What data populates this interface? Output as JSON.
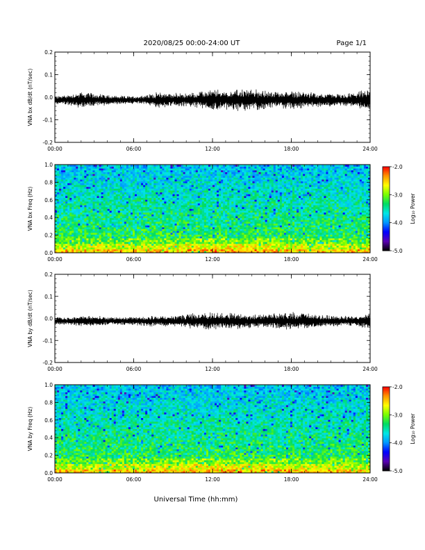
{
  "header": {
    "date_range": "2020/08/25  00:00-24:00 UT",
    "page": "Page 1/1"
  },
  "xlabel": "Universal Time (hh:mm)",
  "colors": {
    "trace": "#000000",
    "colorbar": [
      "#000000",
      "#5a00b4",
      "#0000ff",
      "#0096ff",
      "#00e6e6",
      "#00dc64",
      "#78ff00",
      "#ffff00",
      "#ff9600",
      "#ff0000"
    ]
  },
  "chart_data": [
    {
      "type": "line",
      "ylabel": "VNA bx dB/dt (nT/sec)",
      "ylim": [
        -0.2,
        0.2
      ],
      "yticks": [
        -0.2,
        -0.1,
        0.0,
        0.1,
        0.2
      ],
      "ytick_labels": [
        "-0.2",
        "-0.1",
        "0.0",
        "0.1",
        "0.2"
      ],
      "xlim": [
        0,
        24
      ],
      "xticks": [
        0,
        6,
        12,
        18,
        24
      ],
      "xtick_labels": [
        "00:00",
        "06:00",
        "12:00",
        "18:00",
        "24:00"
      ],
      "envelope": {
        "hours": [
          0,
          1,
          2,
          3,
          4,
          5,
          6,
          7,
          8,
          9,
          10,
          11,
          12,
          13,
          14,
          15,
          16,
          17,
          18,
          19,
          20,
          21,
          22,
          23,
          24
        ],
        "amplitude": [
          0.015,
          0.02,
          0.03,
          0.025,
          0.02,
          0.015,
          0.015,
          0.02,
          0.03,
          0.025,
          0.025,
          0.03,
          0.04,
          0.035,
          0.04,
          0.04,
          0.035,
          0.03,
          0.035,
          0.03,
          0.025,
          0.025,
          0.02,
          0.03,
          0.04
        ]
      }
    },
    {
      "type": "heatmap",
      "ylabel": "VNA bx Freq (Hz)",
      "ylim": [
        0.0,
        1.0
      ],
      "yticks": [
        0.0,
        0.2,
        0.4,
        0.6,
        0.8,
        1.0
      ],
      "ytick_labels": [
        "0.0",
        "0.2",
        "0.4",
        "0.6",
        "0.8",
        "1.0"
      ],
      "xlim": [
        0,
        24
      ],
      "xticks": [
        0,
        6,
        12,
        18,
        24
      ],
      "xtick_labels": [
        "00:00",
        "06:00",
        "12:00",
        "18:00",
        "24:00"
      ],
      "colorbar": {
        "label": "Log₁₀ Power",
        "range": [
          -5.0,
          -2.0
        ],
        "ticks": [
          "-2.0",
          "-3.0",
          "-4.0",
          "-5.0"
        ]
      }
    },
    {
      "type": "line",
      "ylabel": "VNA by dB/dt (nT/sec)",
      "ylim": [
        -0.2,
        0.2
      ],
      "yticks": [
        -0.2,
        -0.1,
        0.0,
        0.1,
        0.2
      ],
      "ytick_labels": [
        "-0.2",
        "-0.1",
        "0.0",
        "0.1",
        "0.2"
      ],
      "xlim": [
        0,
        24
      ],
      "xticks": [
        0,
        6,
        12,
        18,
        24
      ],
      "xtick_labels": [
        "00:00",
        "06:00",
        "12:00",
        "18:00",
        "24:00"
      ],
      "envelope": {
        "hours": [
          0,
          1,
          2,
          3,
          4,
          5,
          6,
          7,
          8,
          9,
          10,
          11,
          12,
          13,
          14,
          15,
          16,
          17,
          18,
          19,
          20,
          21,
          22,
          23,
          24
        ],
        "amplitude": [
          0.015,
          0.015,
          0.02,
          0.02,
          0.015,
          0.015,
          0.015,
          0.02,
          0.02,
          0.02,
          0.025,
          0.03,
          0.035,
          0.03,
          0.03,
          0.025,
          0.025,
          0.03,
          0.035,
          0.03,
          0.025,
          0.02,
          0.02,
          0.02,
          0.03
        ]
      }
    },
    {
      "type": "heatmap",
      "ylabel": "VNA by Freq (Hz)",
      "ylim": [
        0.0,
        1.0
      ],
      "yticks": [
        0.0,
        0.2,
        0.4,
        0.6,
        0.8,
        1.0
      ],
      "ytick_labels": [
        "0.0",
        "0.2",
        "0.4",
        "0.6",
        "0.8",
        "1.0"
      ],
      "xlim": [
        0,
        24
      ],
      "xticks": [
        0,
        6,
        12,
        18,
        24
      ],
      "xtick_labels": [
        "00:00",
        "06:00",
        "12:00",
        "18:00",
        "24:00"
      ],
      "colorbar": {
        "label": "Log₁₀ Power",
        "range": [
          -5.0,
          -2.0
        ],
        "ticks": [
          "-2.0",
          "-3.0",
          "-4.0",
          "-5.0"
        ]
      }
    }
  ]
}
